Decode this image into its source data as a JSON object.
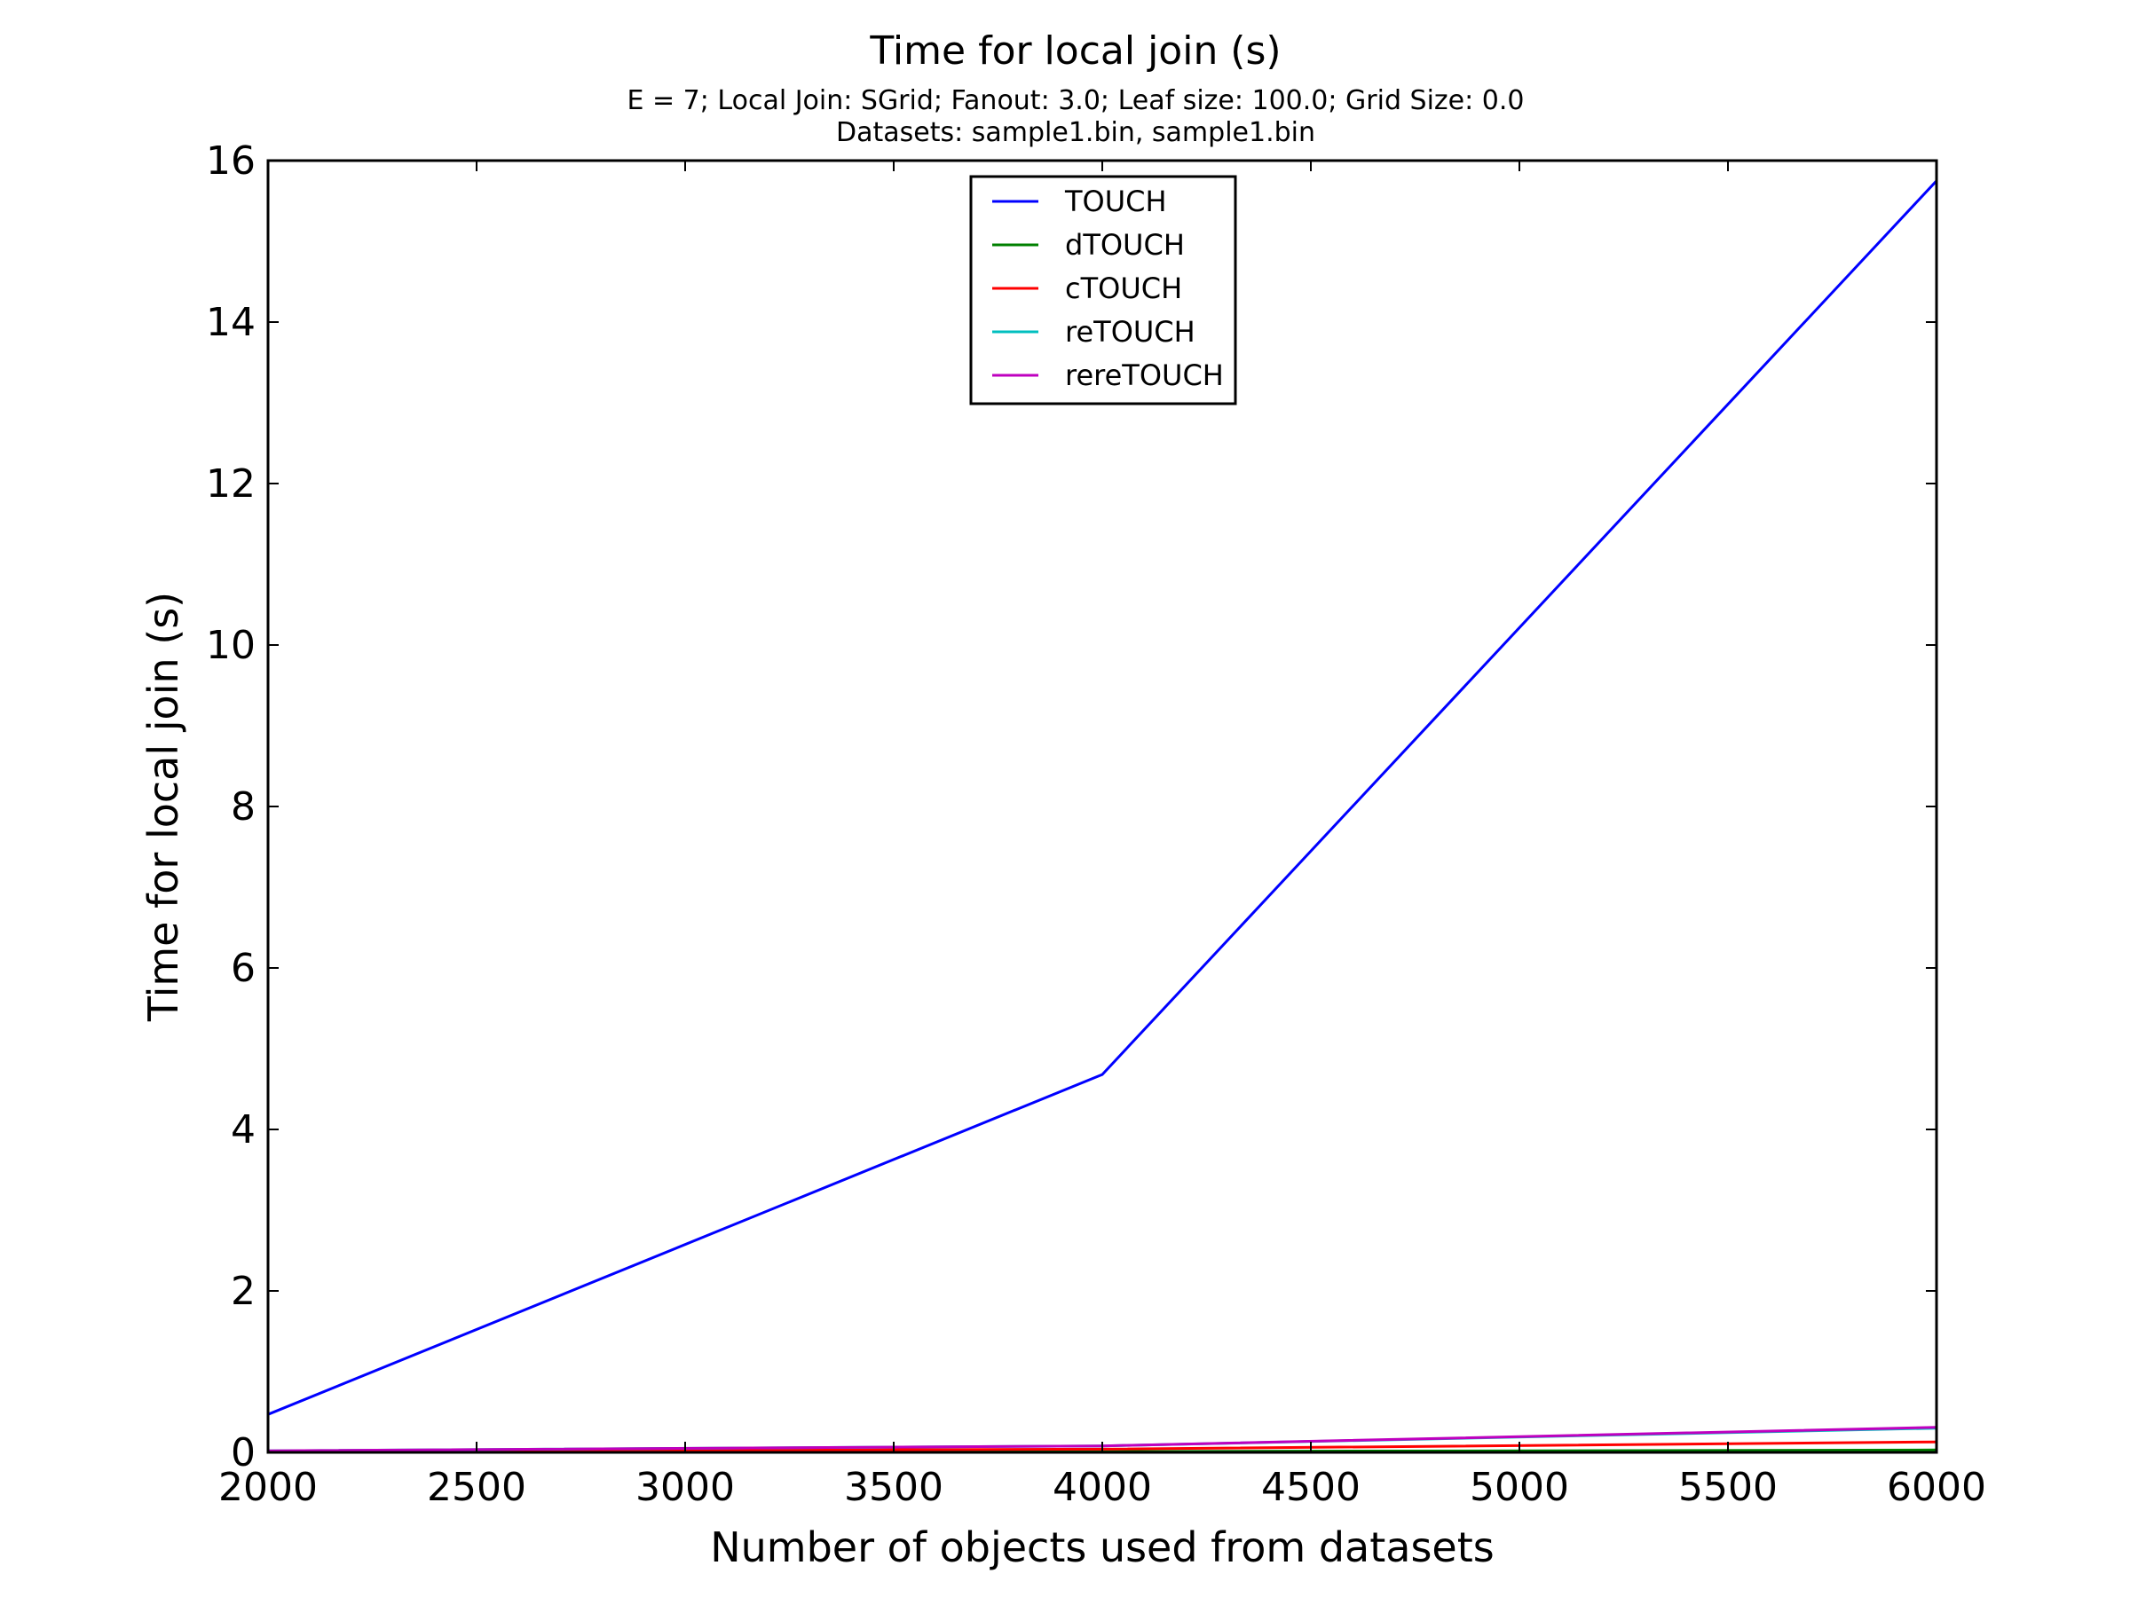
{
  "chart_data": {
    "type": "line",
    "title": "Time for local join (s)",
    "subtitle_lines": [
      "E = 7; Local Join: SGrid; Fanout: 3.0; Leaf size: 100.0; Grid Size: 0.0",
      "Datasets: sample1.bin, sample1.bin"
    ],
    "xlabel": "Number of objects used from datasets",
    "ylabel": "Time for local join (s)",
    "xlim": [
      2000,
      6000
    ],
    "ylim": [
      0,
      16
    ],
    "x_ticks": [
      2000,
      2500,
      3000,
      3500,
      4000,
      4500,
      5000,
      5500,
      6000
    ],
    "y_ticks": [
      0,
      2,
      4,
      6,
      8,
      10,
      12,
      14,
      16
    ],
    "grid": false,
    "legend_position": "upper-center",
    "x": [
      2000,
      4000,
      6000
    ],
    "series": [
      {
        "name": "TOUCH",
        "color": "#0000ff",
        "values": [
          0.47,
          4.68,
          15.75
        ]
      },
      {
        "name": "dTOUCH",
        "color": "#008000",
        "values": [
          0.0,
          0.01,
          0.03
        ]
      },
      {
        "name": "cTOUCH",
        "color": "#ff0000",
        "values": [
          0.01,
          0.04,
          0.13
        ]
      },
      {
        "name": "reTOUCH",
        "color": "#00bfbf",
        "values": [
          0.02,
          0.08,
          0.3
        ]
      },
      {
        "name": "rereTOUCH",
        "color": "#bf00bf",
        "values": [
          0.02,
          0.08,
          0.31
        ]
      }
    ]
  }
}
